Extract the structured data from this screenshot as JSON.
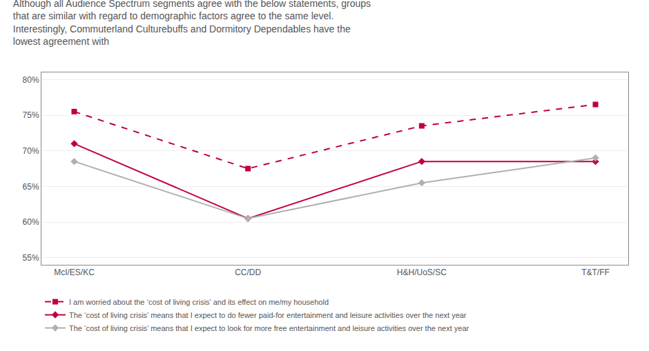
{
  "chart_data": {
    "type": "line",
    "title": "Although all Audience Spectrum segments agree with the below statements, groups\nthat are similar with regard to demographic factors agree to the same level.\nInterestingly, Commuterland Culturebuffs and Dormitory Dependables have the\nlowest agreement with",
    "categories": [
      "McI/ES/KC",
      "CC/DD",
      "H&H/UoS/SC",
      "T&T/FF"
    ],
    "series": [
      {
        "name": "I am worried about the ‘cost of living crisis’ and its effect on me/my household",
        "values": [
          75.5,
          67.5,
          73.5,
          76.5
        ],
        "color": "#c0003c",
        "line_style": "dashed",
        "marker": "square"
      },
      {
        "name": "The ‘cost of living crisis’ means that I expect to do fewer paid-for entertainment and leisure activities over the next year",
        "values": [
          71.0,
          60.5,
          68.5,
          68.5
        ],
        "color": "#c0003c",
        "line_style": "solid",
        "marker": "diamond"
      },
      {
        "name": "The ‘cost of living crisis’ means that I expect to look for more free entertainment and leisure activities over the next year",
        "values": [
          68.5,
          60.5,
          65.5,
          69.0
        ],
        "color": "#b0b0b0",
        "line_style": "solid",
        "marker": "diamond"
      }
    ],
    "ylim": [
      54,
      81
    ],
    "yticks": [
      {
        "value": 55,
        "label": "55%"
      },
      {
        "value": 60,
        "label": "60%"
      },
      {
        "value": 65,
        "label": "65%"
      },
      {
        "value": 70,
        "label": "70%"
      },
      {
        "value": 75,
        "label": "75%"
      },
      {
        "value": 80,
        "label": "80%"
      }
    ],
    "grid": true,
    "legend": "bottom"
  }
}
